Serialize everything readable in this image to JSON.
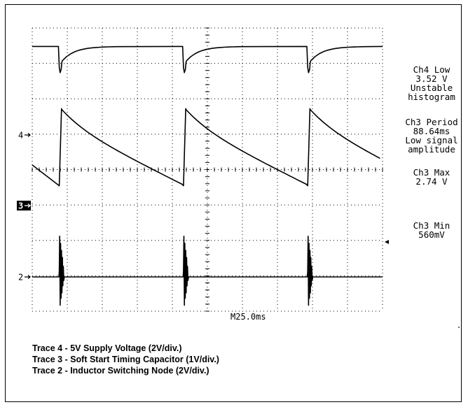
{
  "chart_data": {
    "type": "line",
    "title": "",
    "xlabel": "",
    "ylabel": "",
    "timebase": "M25.0ms",
    "channel_markers": [
      {
        "label": "4",
        "name": "ch4-marker"
      },
      {
        "label": "3",
        "name": "ch3-marker"
      },
      {
        "label": "2",
        "name": "ch2-marker"
      }
    ],
    "measurements": [
      {
        "name": "ch4-low",
        "lines": [
          "Ch4 Low",
          "3.52 V",
          "Unstable",
          "histogram"
        ]
      },
      {
        "name": "ch3-period",
        "lines": [
          "Ch3 Period",
          "88.64ms",
          "Low signal",
          "amplitude"
        ]
      },
      {
        "name": "ch3-max",
        "lines": [
          "Ch3 Max",
          "2.74 V"
        ]
      },
      {
        "name": "ch3-min",
        "lines": [
          "Ch3 Min",
          "560mV"
        ]
      }
    ],
    "series": [
      {
        "name": "Trace 4",
        "units": "V",
        "volts_per_div": 2,
        "period_ms": 88.64,
        "high": 5.0,
        "dip_low": 3.52
      },
      {
        "name": "Trace 3",
        "units": "V",
        "volts_per_div": 1,
        "period_ms": 88.64,
        "max": 2.74,
        "min": 0.56
      },
      {
        "name": "Trace 2",
        "units": "V",
        "volts_per_div": 2,
        "period_ms": 88.64,
        "idle": 0
      }
    ],
    "xlim_ms": [
      0,
      250
    ],
    "grid": true
  },
  "caption": [
    "Trace 4 - 5V Supply Voltage (2V/div.)",
    "Trace 3 - Soft Start Timing Capacitor (1V/div.)",
    "Trace 2 - Inductor Switching Node (2V/div.)"
  ]
}
